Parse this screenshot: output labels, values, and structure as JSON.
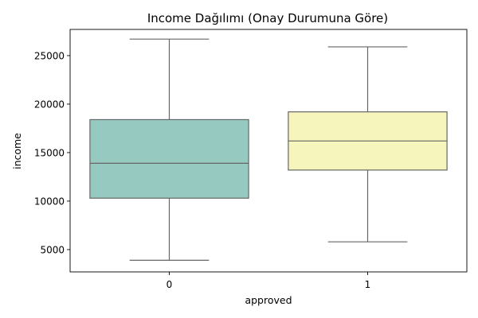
{
  "chart_data": {
    "type": "box",
    "title": "Income Dağılımı (Onay Durumuna Göre)",
    "xlabel": "approved",
    "ylabel": "income",
    "categories": [
      "0",
      "1"
    ],
    "boxes": [
      {
        "category": "0",
        "min": 3900,
        "q1": 10300,
        "median": 13900,
        "q3": 18400,
        "max": 26700,
        "color": "#96cac1"
      },
      {
        "category": "1",
        "min": 5800,
        "q1": 13200,
        "median": 16200,
        "q3": 19200,
        "max": 25900,
        "color": "#f6f6bc"
      }
    ],
    "ylim": [
      2700,
      27700
    ],
    "yticks": [
      5000,
      10000,
      15000,
      20000,
      25000
    ],
    "grid": false,
    "legend": "none"
  }
}
